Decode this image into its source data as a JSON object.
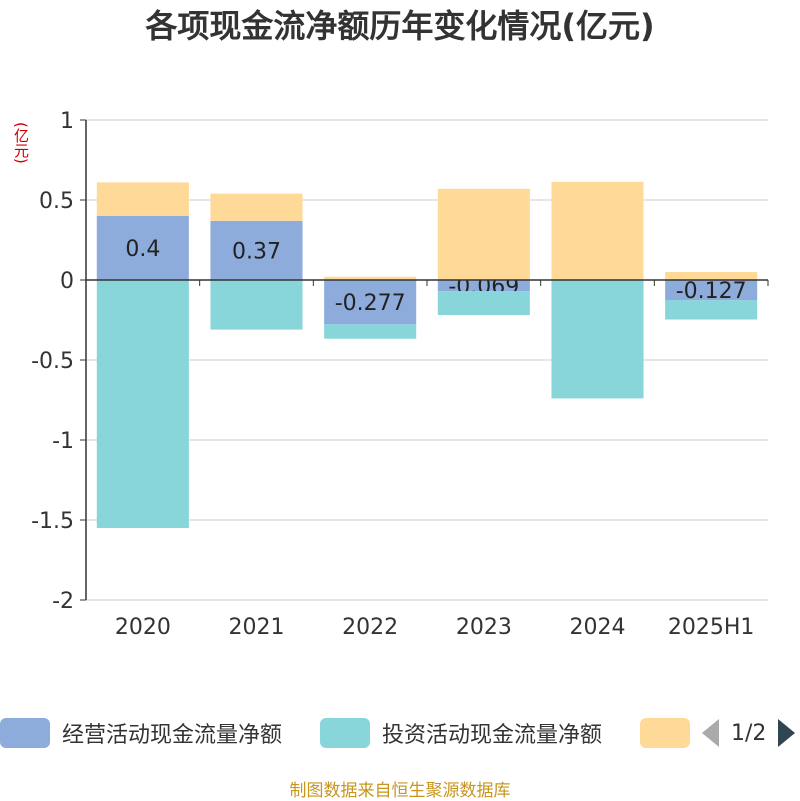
{
  "title": "各项现金流净额历年变化情况(亿元)",
  "unit_label": "(亿元)",
  "source": "制图数据来自恒生聚源数据库",
  "legend": {
    "items": [
      {
        "label": "经营活动现金流量净额",
        "color": "#8eacdb"
      },
      {
        "label": "投资活动现金流量净额",
        "color": "#88d6d9"
      },
      {
        "label": "",
        "color": "#ffd997"
      }
    ],
    "page": "1/2"
  },
  "chart_data": {
    "type": "bar",
    "stacked": true,
    "categories": [
      "2020",
      "2021",
      "2022",
      "2023",
      "2024",
      "2025H1"
    ],
    "ylim": [
      -2,
      1
    ],
    "yticks": [
      1,
      0.5,
      0,
      -0.5,
      -1,
      -1.5,
      -2
    ],
    "ytick_labels": [
      "1",
      "0.5",
      "0",
      "-0.5",
      "-1",
      "-1.5",
      "-2"
    ],
    "grid": true,
    "series": [
      {
        "name": "经营活动现金流量净额",
        "color": "#8eacdb",
        "values": [
          0.4,
          0.37,
          -0.277,
          -0.069,
          0.003,
          -0.127
        ],
        "labels": [
          "0.4",
          "0.37",
          "-0.277",
          "-0.069",
          "",
          "-0.127"
        ]
      },
      {
        "name": "投资活动现金流量净额",
        "color": "#88d6d9",
        "values": [
          -1.55,
          -0.31,
          -0.09,
          -0.15,
          -0.74,
          -0.12
        ]
      },
      {
        "color": "#ffd997",
        "values": [
          0.21,
          0.17,
          0.02,
          0.57,
          0.61,
          0.05
        ]
      }
    ]
  }
}
